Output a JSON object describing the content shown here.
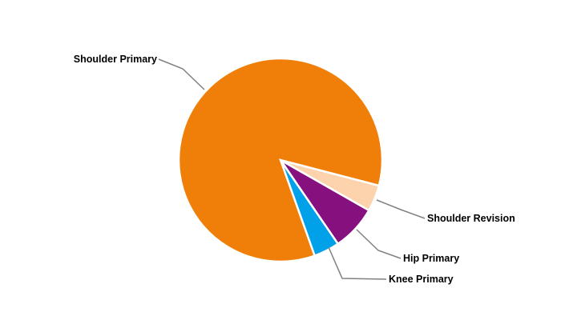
{
  "chart_data": {
    "type": "pie",
    "title": "",
    "slices": [
      {
        "label": "Shoulder Revision",
        "value": 4.2,
        "color": "#FCD3AC"
      },
      {
        "label": "Hip Primary",
        "value": 7.2,
        "color": "#85107E"
      },
      {
        "label": "Knee Primary",
        "value": 4.1,
        "color": "#00A1E8"
      },
      {
        "label": "Shoulder Primary",
        "value": 84.5,
        "color": "#F07F09"
      }
    ],
    "legend": "none",
    "labels": "outside with leader lines"
  }
}
